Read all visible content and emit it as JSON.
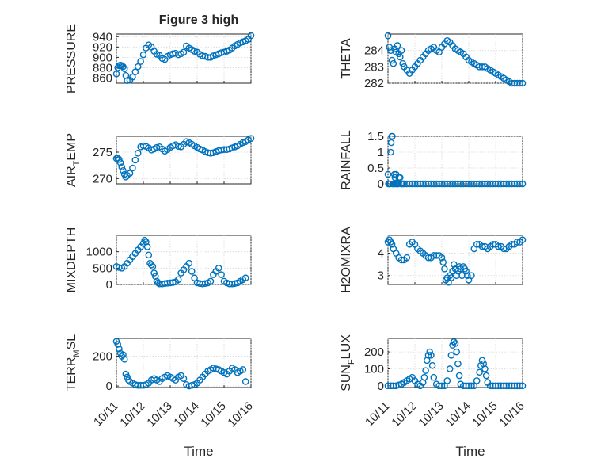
{
  "figure": {
    "title": "Figure 3 high",
    "marker_color": "#0072BD",
    "xlabel": "Time",
    "xticks": [
      "10/11",
      "10/12",
      "10/13",
      "10/14",
      "10/15",
      "10/16"
    ]
  },
  "chart_data": [
    {
      "type": "scatter",
      "ylabel": "PRESSURE",
      "ylabel_parts": [
        "PRESSURE"
      ],
      "ylim": [
        850,
        945
      ],
      "yticks": [
        860,
        880,
        900,
        920,
        940
      ],
      "xlim": [
        0,
        5
      ],
      "grid": true,
      "series": [
        {
          "x": [
            0.0,
            0.05,
            0.1,
            0.15,
            0.2,
            0.25,
            0.3,
            0.35,
            0.4,
            0.5,
            0.6,
            0.7,
            0.8,
            0.9,
            1.0,
            1.1,
            1.2,
            1.3,
            1.4,
            1.5,
            1.6,
            1.7,
            1.8,
            1.9,
            2.0,
            2.1,
            2.2,
            2.3,
            2.4,
            2.5,
            2.6,
            2.7,
            2.8,
            2.9,
            3.0,
            3.1,
            3.2,
            3.3,
            3.4,
            3.5,
            3.6,
            3.7,
            3.8,
            3.9,
            4.0,
            4.1,
            4.2,
            4.3,
            4.4,
            4.5,
            4.6,
            4.7,
            4.8,
            4.9,
            5.0
          ],
          "y": [
            868,
            880,
            884,
            885,
            884,
            882,
            878,
            865,
            855,
            856,
            862,
            872,
            882,
            892,
            905,
            918,
            924,
            920,
            912,
            906,
            904,
            898,
            896,
            902,
            905,
            907,
            908,
            905,
            907,
            910,
            922,
            918,
            915,
            912,
            910,
            906,
            903,
            902,
            900,
            900,
            903,
            905,
            907,
            909,
            910,
            912,
            914,
            918,
            922,
            925,
            928,
            930,
            932,
            935,
            942
          ]
        }
      ]
    },
    {
      "type": "scatter",
      "ylabel": "THETA",
      "ylabel_parts": [
        "THETA"
      ],
      "ylim": [
        282,
        285
      ],
      "yticks": [
        282,
        283,
        284
      ],
      "xlim": [
        0,
        5
      ],
      "grid": true,
      "series": [
        {
          "x": [
            0.0,
            0.05,
            0.1,
            0.15,
            0.2,
            0.25,
            0.3,
            0.35,
            0.4,
            0.45,
            0.5,
            0.55,
            0.6,
            0.7,
            0.8,
            0.9,
            1.0,
            1.1,
            1.2,
            1.3,
            1.4,
            1.5,
            1.6,
            1.7,
            1.8,
            1.9,
            2.0,
            2.1,
            2.2,
            2.3,
            2.4,
            2.5,
            2.6,
            2.7,
            2.8,
            2.9,
            3.0,
            3.1,
            3.2,
            3.3,
            3.4,
            3.5,
            3.6,
            3.7,
            3.8,
            3.9,
            4.0,
            4.1,
            4.2,
            4.3,
            4.4,
            4.5,
            4.6,
            4.7,
            4.8,
            4.9,
            5.0
          ],
          "y": [
            284.9,
            284.2,
            284.0,
            283.4,
            283.2,
            284.1,
            283.9,
            284.3,
            283.8,
            283.6,
            284.0,
            283.2,
            283.0,
            282.8,
            282.6,
            282.8,
            283.0,
            283.2,
            283.4,
            283.6,
            283.8,
            284.0,
            284.1,
            284.2,
            284.0,
            283.9,
            284.2,
            284.4,
            284.6,
            284.5,
            284.3,
            284.1,
            284.0,
            283.9,
            283.8,
            283.6,
            283.4,
            283.3,
            283.2,
            283.1,
            283.0,
            283.0,
            283.0,
            282.9,
            282.8,
            282.7,
            282.6,
            282.5,
            282.4,
            282.3,
            282.2,
            282.1,
            282.0,
            282.0,
            282.0,
            282.0,
            282.0
          ]
        }
      ]
    },
    {
      "type": "scatter",
      "ylabel": "AIR_TEMP",
      "ylabel_parts": [
        "AIR",
        "T",
        "EMP"
      ],
      "ylim": [
        269,
        278
      ],
      "yticks": [
        270,
        275
      ],
      "xlim": [
        0,
        5
      ],
      "grid": true,
      "series": [
        {
          "x": [
            0.0,
            0.05,
            0.1,
            0.15,
            0.2,
            0.25,
            0.3,
            0.35,
            0.4,
            0.5,
            0.6,
            0.7,
            0.8,
            0.9,
            1.0,
            1.1,
            1.2,
            1.3,
            1.4,
            1.5,
            1.6,
            1.7,
            1.8,
            1.9,
            2.0,
            2.1,
            2.2,
            2.3,
            2.4,
            2.5,
            2.6,
            2.7,
            2.8,
            2.9,
            3.0,
            3.1,
            3.2,
            3.3,
            3.4,
            3.5,
            3.6,
            3.7,
            3.8,
            3.9,
            4.0,
            4.1,
            4.2,
            4.3,
            4.4,
            4.5,
            4.6,
            4.7,
            4.8,
            4.9,
            5.0
          ],
          "y": [
            273.8,
            273.9,
            273.6,
            273.0,
            272.2,
            271.5,
            270.8,
            270.3,
            270.6,
            271.0,
            272.0,
            273.5,
            274.8,
            276.0,
            276.2,
            276.1,
            275.8,
            275.4,
            275.6,
            275.9,
            276.0,
            275.6,
            275.2,
            275.5,
            275.9,
            276.2,
            276.4,
            276.1,
            276.0,
            276.5,
            277.0,
            276.8,
            276.5,
            276.2,
            275.9,
            275.6,
            275.4,
            275.1,
            274.9,
            274.8,
            274.9,
            275.1,
            275.3,
            275.4,
            275.5,
            275.5,
            275.6,
            275.8,
            276.0,
            276.2,
            276.5,
            276.8,
            277.0,
            277.3,
            277.6
          ]
        }
      ]
    },
    {
      "type": "scatter",
      "ylabel": "RAINFALL",
      "ylabel_parts": [
        "RAINFALL"
      ],
      "ylim": [
        0,
        1.5
      ],
      "yticks": [
        0,
        0.5,
        1,
        1.5
      ],
      "xlim": [
        0,
        5
      ],
      "grid": true,
      "series": [
        {
          "x": [
            0.0,
            0.02,
            0.04,
            0.06,
            0.08,
            0.1,
            0.12,
            0.14,
            0.16,
            0.18,
            0.2,
            0.22,
            0.24,
            0.26,
            0.28,
            0.3,
            0.32,
            0.34,
            0.36,
            0.38,
            0.4,
            0.45,
            0.5,
            0.55,
            0.6,
            0.7,
            0.8,
            0.9,
            1.0,
            1.1,
            1.2,
            1.3,
            1.4,
            1.5,
            1.6,
            1.7,
            1.8,
            1.9,
            2.0,
            2.1,
            2.2,
            2.3,
            2.4,
            2.5,
            2.6,
            2.7,
            2.8,
            2.9,
            3.0,
            3.1,
            3.2,
            3.3,
            3.4,
            3.5,
            3.6,
            3.7,
            3.8,
            3.9,
            4.0,
            4.1,
            4.2,
            4.3,
            4.4,
            4.5,
            4.6,
            4.7,
            4.8,
            4.9,
            5.0
          ],
          "y": [
            0.3,
            0.0,
            0.0,
            0.0,
            0.0,
            1.0,
            1.3,
            1.5,
            1.5,
            0.0,
            0.0,
            0.0,
            0.3,
            0.2,
            0.0,
            0.3,
            0.0,
            0.0,
            0.0,
            0.0,
            0.2,
            0.2,
            0.0,
            0.0,
            0.0,
            0.0,
            0.0,
            0.0,
            0.0,
            0.0,
            0.0,
            0.0,
            0.0,
            0.0,
            0.0,
            0.0,
            0.0,
            0.0,
            0.0,
            0.0,
            0.0,
            0.0,
            0.0,
            0.0,
            0.0,
            0.0,
            0.0,
            0.0,
            0.0,
            0.0,
            0.0,
            0.0,
            0.0,
            0.0,
            0.0,
            0.0,
            0.0,
            0.0,
            0.0,
            0.0,
            0.0,
            0.0,
            0.0,
            0.0,
            0.0,
            0.0,
            0.0,
            0.0,
            0.0
          ]
        }
      ]
    },
    {
      "type": "scatter",
      "ylabel": "MIXDEPTH",
      "ylabel_parts": [
        "MIXDEPTH"
      ],
      "ylim": [
        0,
        1500
      ],
      "yticks": [
        0,
        500,
        1000
      ],
      "xlim": [
        0,
        5
      ],
      "grid": true,
      "series": [
        {
          "x": [
            0.0,
            0.1,
            0.2,
            0.3,
            0.4,
            0.5,
            0.6,
            0.7,
            0.8,
            0.9,
            1.0,
            1.05,
            1.1,
            1.15,
            1.2,
            1.25,
            1.3,
            1.35,
            1.4,
            1.45,
            1.5,
            1.55,
            1.6,
            1.7,
            1.8,
            1.9,
            2.0,
            2.1,
            2.2,
            2.3,
            2.4,
            2.5,
            2.6,
            2.7,
            2.8,
            2.9,
            3.0,
            3.1,
            3.2,
            3.3,
            3.4,
            3.5,
            3.6,
            3.7,
            3.8,
            3.9,
            4.0,
            4.1,
            4.2,
            4.3,
            4.4,
            4.5,
            4.6,
            4.7,
            4.8
          ],
          "y": [
            550,
            520,
            500,
            550,
            650,
            750,
            850,
            950,
            1050,
            1150,
            1250,
            1350,
            1300,
            1150,
            900,
            650,
            600,
            550,
            350,
            250,
            100,
            50,
            20,
            20,
            30,
            40,
            50,
            60,
            80,
            150,
            350,
            450,
            550,
            650,
            400,
            200,
            50,
            30,
            20,
            30,
            50,
            100,
            300,
            400,
            500,
            300,
            100,
            50,
            20,
            20,
            30,
            50,
            100,
            150,
            200
          ]
        }
      ]
    },
    {
      "type": "scatter",
      "ylabel": "H2OMIXRA",
      "ylabel_parts": [
        "H2OMIXRA"
      ],
      "ylim": [
        2.6,
        4.8
      ],
      "yticks": [
        3,
        4
      ],
      "xlim": [
        0,
        5
      ],
      "grid": true,
      "series": [
        {
          "x": [
            0.0,
            0.05,
            0.1,
            0.15,
            0.2,
            0.3,
            0.4,
            0.5,
            0.6,
            0.7,
            0.8,
            0.9,
            1.0,
            1.1,
            1.2,
            1.3,
            1.4,
            1.5,
            1.6,
            1.7,
            1.8,
            1.9,
            2.0,
            2.05,
            2.1,
            2.15,
            2.2,
            2.25,
            2.3,
            2.35,
            2.4,
            2.45,
            2.5,
            2.55,
            2.6,
            2.65,
            2.7,
            2.75,
            2.8,
            2.85,
            2.9,
            2.95,
            3.0,
            3.1,
            3.2,
            3.3,
            3.4,
            3.5,
            3.6,
            3.7,
            3.8,
            3.9,
            4.0,
            4.1,
            4.2,
            4.3,
            4.4,
            4.5,
            4.6,
            4.7,
            4.8,
            4.9,
            5.0
          ],
          "y": [
            4.5,
            4.6,
            4.5,
            4.4,
            4.2,
            4.0,
            3.8,
            3.7,
            3.7,
            3.8,
            4.4,
            4.5,
            4.4,
            4.2,
            4.1,
            4.0,
            3.9,
            3.8,
            3.8,
            3.9,
            3.9,
            3.9,
            3.8,
            3.6,
            3.3,
            2.8,
            2.9,
            2.7,
            3.0,
            2.9,
            3.2,
            3.5,
            3.3,
            3.0,
            3.2,
            3.4,
            3.3,
            3.0,
            3.4,
            3.3,
            3.2,
            3.0,
            2.8,
            3.0,
            4.2,
            4.4,
            4.4,
            4.3,
            4.3,
            4.2,
            4.3,
            4.4,
            4.4,
            4.3,
            4.3,
            4.2,
            4.2,
            4.3,
            4.4,
            4.4,
            4.5,
            4.5,
            4.6
          ]
        }
      ]
    },
    {
      "type": "scatter",
      "ylabel": "TERR_MSL",
      "ylabel_parts": [
        "TERR",
        "M",
        "SL"
      ],
      "ylim": [
        -10,
        320
      ],
      "yticks": [
        0,
        200
      ],
      "xlim": [
        0,
        5
      ],
      "grid": true,
      "series": [
        {
          "x": [
            0.0,
            0.05,
            0.1,
            0.15,
            0.2,
            0.25,
            0.3,
            0.35,
            0.4,
            0.45,
            0.5,
            0.6,
            0.7,
            0.8,
            0.9,
            1.0,
            1.1,
            1.2,
            1.3,
            1.4,
            1.5,
            1.6,
            1.7,
            1.8,
            1.9,
            2.0,
            2.1,
            2.2,
            2.3,
            2.4,
            2.5,
            2.6,
            2.7,
            2.8,
            2.9,
            3.0,
            3.1,
            3.2,
            3.3,
            3.4,
            3.5,
            3.6,
            3.7,
            3.8,
            3.9,
            4.0,
            4.1,
            4.2,
            4.3,
            4.4,
            4.5,
            4.6,
            4.7,
            4.8
          ],
          "y": [
            300,
            280,
            250,
            220,
            200,
            210,
            180,
            80,
            60,
            40,
            30,
            20,
            10,
            5,
            5,
            5,
            10,
            20,
            40,
            50,
            40,
            30,
            50,
            60,
            70,
            60,
            50,
            40,
            60,
            70,
            50,
            10,
            0,
            5,
            10,
            20,
            40,
            60,
            80,
            100,
            110,
            120,
            115,
            110,
            100,
            90,
            80,
            100,
            120,
            110,
            90,
            100,
            110,
            30
          ]
        }
      ]
    },
    {
      "type": "scatter",
      "ylabel": "SUN_FLUX",
      "ylabel_parts": [
        "SUN",
        "F",
        "LUX"
      ],
      "ylim": [
        -10,
        280
      ],
      "yticks": [
        0,
        100,
        200
      ],
      "xlim": [
        0,
        5
      ],
      "grid": true,
      "series": [
        {
          "x": [
            0.0,
            0.1,
            0.2,
            0.3,
            0.4,
            0.5,
            0.6,
            0.7,
            0.8,
            0.9,
            1.0,
            1.1,
            1.2,
            1.3,
            1.35,
            1.4,
            1.45,
            1.5,
            1.55,
            1.6,
            1.65,
            1.7,
            1.8,
            1.9,
            2.0,
            2.1,
            2.2,
            2.3,
            2.35,
            2.4,
            2.45,
            2.5,
            2.55,
            2.6,
            2.65,
            2.7,
            2.8,
            2.9,
            3.0,
            3.1,
            3.2,
            3.3,
            3.4,
            3.45,
            3.5,
            3.55,
            3.6,
            3.65,
            3.7,
            3.8,
            3.9,
            4.0,
            4.1,
            4.2,
            4.3,
            4.4,
            4.5,
            4.6,
            4.7,
            4.8,
            4.9,
            5.0
          ],
          "y": [
            0,
            0,
            0,
            0,
            5,
            10,
            20,
            30,
            40,
            50,
            30,
            10,
            0,
            20,
            50,
            90,
            150,
            180,
            200,
            180,
            120,
            50,
            10,
            0,
            0,
            0,
            30,
            100,
            180,
            240,
            260,
            250,
            200,
            130,
            60,
            10,
            0,
            0,
            0,
            0,
            0,
            30,
            80,
            120,
            150,
            130,
            100,
            60,
            20,
            0,
            0,
            0,
            0,
            0,
            0,
            0,
            0,
            0,
            0,
            0,
            0,
            0
          ]
        }
      ]
    }
  ]
}
